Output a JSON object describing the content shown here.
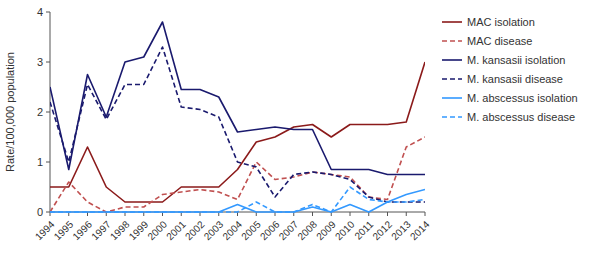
{
  "chart_data": {
    "type": "line",
    "ylabel": "Rate/100,000 population",
    "x": [
      1994,
      1995,
      1996,
      1997,
      1998,
      1999,
      2000,
      2001,
      2002,
      2003,
      2004,
      2005,
      2006,
      2007,
      2008,
      2009,
      2010,
      2011,
      2012,
      2013,
      2014
    ],
    "xlim": [
      1994,
      2014
    ],
    "xticks": [
      1994,
      1995,
      1996,
      1997,
      1998,
      1999,
      2000,
      2001,
      2002,
      2003,
      2004,
      2005,
      2006,
      2007,
      2008,
      2009,
      2010,
      2011,
      2012,
      2013,
      2014
    ],
    "ylim": [
      0,
      4
    ],
    "yticks": [
      0,
      1,
      2,
      3,
      4
    ],
    "grid": false,
    "legend": "right",
    "series": [
      {
        "name": "MAC isolation",
        "color": "#8B1A1A",
        "line_style": "solid",
        "values": [
          0.5,
          0.5,
          1.3,
          0.5,
          0.2,
          0.2,
          0.2,
          0.5,
          0.5,
          0.5,
          0.85,
          1.4,
          1.5,
          1.7,
          1.75,
          1.5,
          1.75,
          1.75,
          1.75,
          1.8,
          3.0
        ]
      },
      {
        "name": "MAC disease",
        "color": "#C05050",
        "line_style": "dashed",
        "values": [
          0.0,
          0.6,
          0.2,
          0.0,
          0.1,
          0.1,
          0.35,
          0.4,
          0.45,
          0.4,
          0.25,
          1.0,
          0.65,
          0.7,
          0.8,
          0.75,
          0.7,
          0.3,
          0.25,
          1.3,
          1.5
        ]
      },
      {
        "name": "M. kansasii isolation",
        "color": "#1a1a6e",
        "line_style": "solid",
        "values": [
          2.5,
          0.85,
          2.75,
          1.9,
          3.0,
          3.1,
          3.8,
          2.45,
          2.45,
          2.3,
          1.6,
          1.65,
          1.7,
          1.65,
          1.65,
          0.85,
          0.85,
          0.85,
          0.75,
          0.75,
          0.75
        ]
      },
      {
        "name": "M. kansasii disease",
        "color": "#1a1a6e",
        "line_style": "dashed",
        "values": [
          2.2,
          1.0,
          2.55,
          1.85,
          2.55,
          2.55,
          3.3,
          2.1,
          2.05,
          1.9,
          1.0,
          0.9,
          0.3,
          0.75,
          0.8,
          0.75,
          0.65,
          0.3,
          0.2,
          0.2,
          0.2
        ]
      },
      {
        "name": "M. abscessus isolation",
        "color": "#3399ff",
        "line_style": "solid",
        "values": [
          0.0,
          0.0,
          0.0,
          0.0,
          0.0,
          0.0,
          0.0,
          0.0,
          0.0,
          0.0,
          0.15,
          0.0,
          0.0,
          0.0,
          0.1,
          0.0,
          0.15,
          0.0,
          0.2,
          0.35,
          0.45
        ]
      },
      {
        "name": "M. abscessus disease",
        "color": "#3399ff",
        "line_style": "dashed",
        "values": [
          0.0,
          0.0,
          0.0,
          0.0,
          0.0,
          0.0,
          0.0,
          0.0,
          0.0,
          0.0,
          0.0,
          0.2,
          0.0,
          0.0,
          0.15,
          0.0,
          0.5,
          0.25,
          0.2,
          0.2,
          0.25
        ]
      }
    ]
  }
}
